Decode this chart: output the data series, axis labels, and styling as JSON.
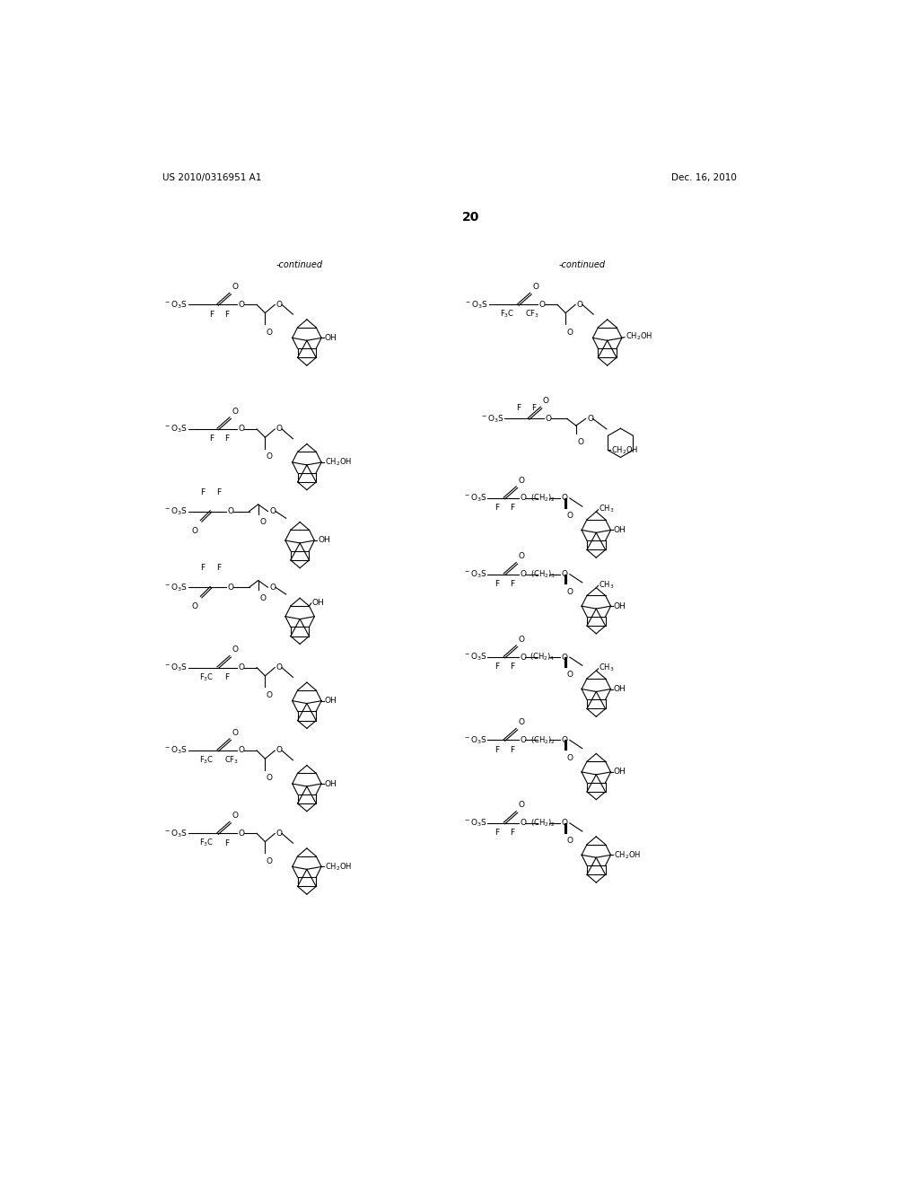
{
  "background_color": "#ffffff",
  "page_number": "20",
  "patent_number": "US 2010/0316951 A1",
  "patent_date": "Dec. 16, 2010",
  "continued": "-continued",
  "figsize": [
    10.24,
    13.2
  ],
  "dpi": 100
}
